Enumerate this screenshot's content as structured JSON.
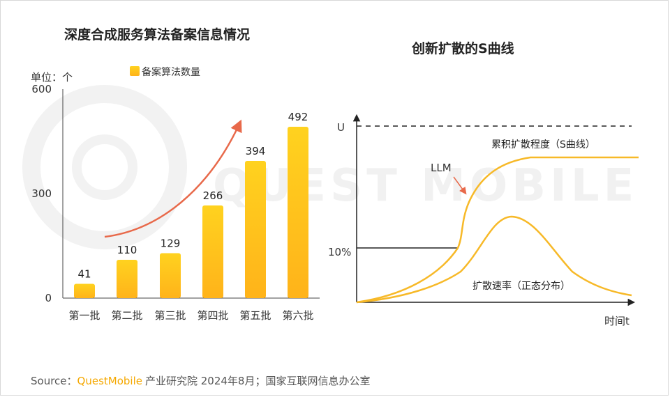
{
  "watermark": "QUEST MOBILE",
  "source": {
    "prefix": "Source：",
    "brand": "QuestMobile",
    "text": "产业研究院 2024年8月；国家互联网信息办公室"
  },
  "colors": {
    "bar_top": "#FFD21F",
    "bar_bottom": "#FFB31A",
    "trend_arrow": "#E8694A",
    "curve": "#F7B928",
    "axis": "#222222"
  },
  "chart_data": [
    {
      "type": "bar",
      "title": "深度合成服务算法备案信息情况",
      "unit_label": "单位：个",
      "legend": {
        "label": "备案算法数量",
        "position": "top"
      },
      "categories": [
        "第一批",
        "第二批",
        "第三批",
        "第四批",
        "第五批",
        "第六批"
      ],
      "series": [
        {
          "name": "备案算法数量",
          "values": [
            41,
            110,
            129,
            266,
            394,
            492
          ]
        }
      ],
      "ylim": [
        0,
        600
      ],
      "yticks": [
        0,
        300,
        600
      ],
      "trend_arrow": true,
      "grid": false
    },
    {
      "type": "line",
      "title": "创新扩散的S曲线",
      "xlabel": "时间t",
      "y_labels": {
        "upper": "U",
        "threshold": "10%"
      },
      "curves": [
        {
          "name": "累积扩散程度（S曲线）",
          "shape": "s-curve"
        },
        {
          "name": "扩散速率（正态分布）",
          "shape": "bell"
        }
      ],
      "annotation": "LLM",
      "grid": false
    }
  ]
}
